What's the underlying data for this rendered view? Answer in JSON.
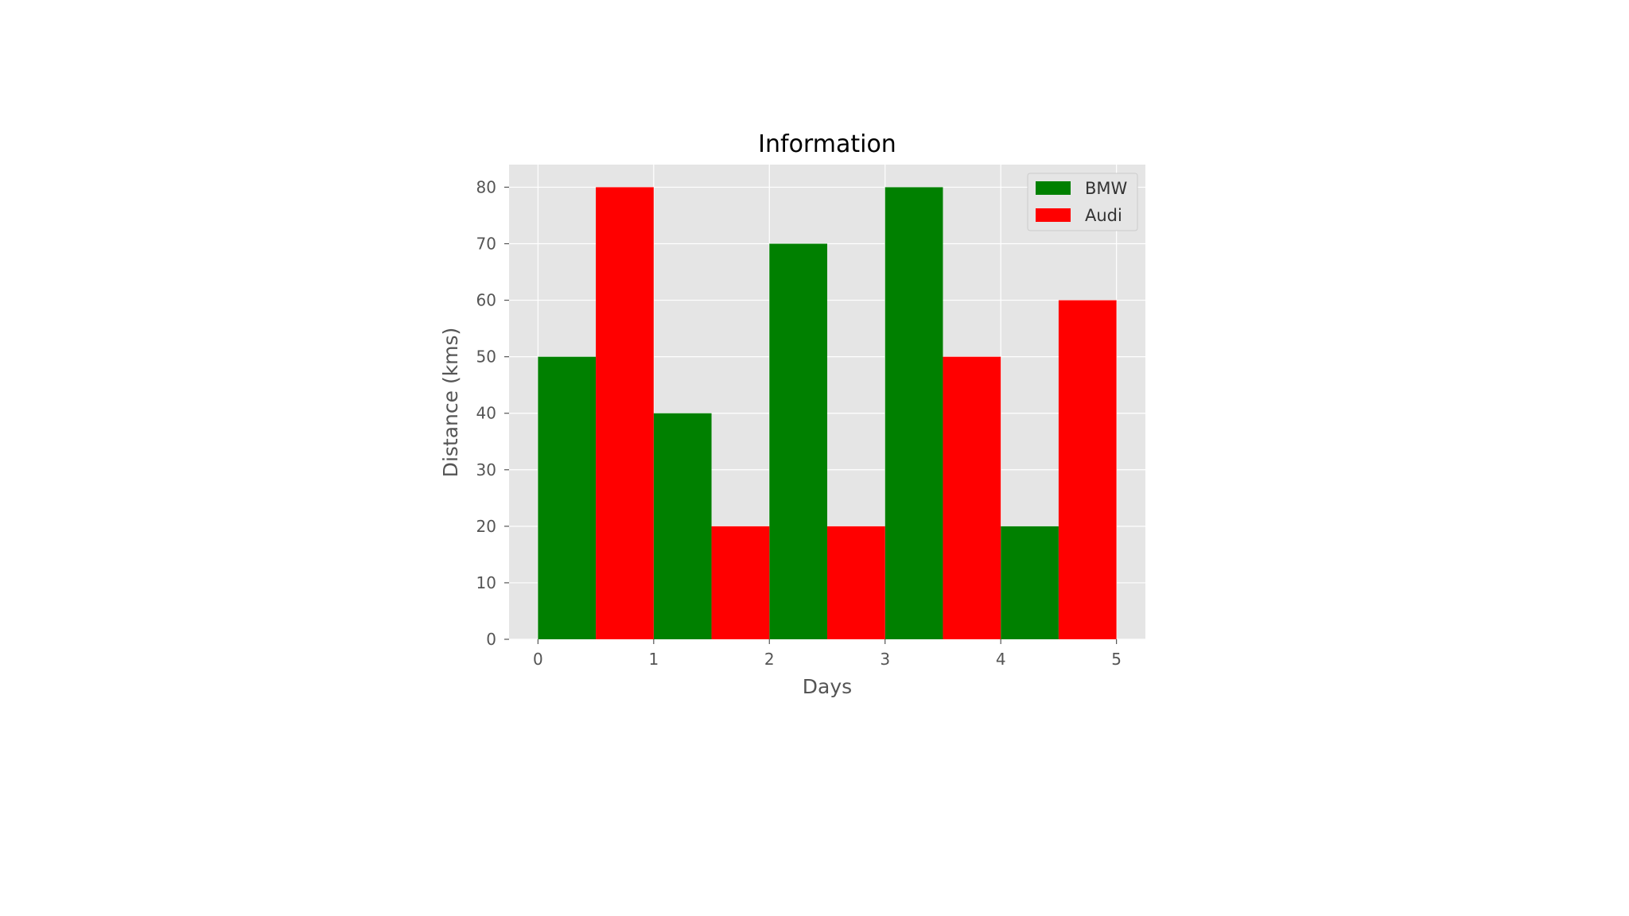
{
  "chart_data": {
    "type": "bar",
    "title": "Information",
    "xlabel": "Days",
    "ylabel": "Distance (kms)",
    "xlim": [
      -0.25,
      5.25
    ],
    "ylim": [
      0,
      84
    ],
    "x_ticks": [
      0,
      1,
      2,
      3,
      4,
      5
    ],
    "y_ticks": [
      0,
      10,
      20,
      30,
      40,
      50,
      60,
      70,
      80
    ],
    "grid": true,
    "legend_position": "top-right",
    "bar_width": 0.5,
    "series": [
      {
        "name": "BMW",
        "color": "#008000",
        "x": [
          0,
          1,
          2,
          3,
          4
        ],
        "values": [
          50,
          40,
          70,
          80,
          20
        ]
      },
      {
        "name": "Audi",
        "color": "#ff0000",
        "x": [
          0.5,
          1.5,
          2.5,
          3.5,
          4.5
        ],
        "values": [
          80,
          20,
          20,
          50,
          60
        ]
      }
    ],
    "colors": {
      "plot_background": "#e5e5e5",
      "grid": "#ffffff"
    }
  }
}
